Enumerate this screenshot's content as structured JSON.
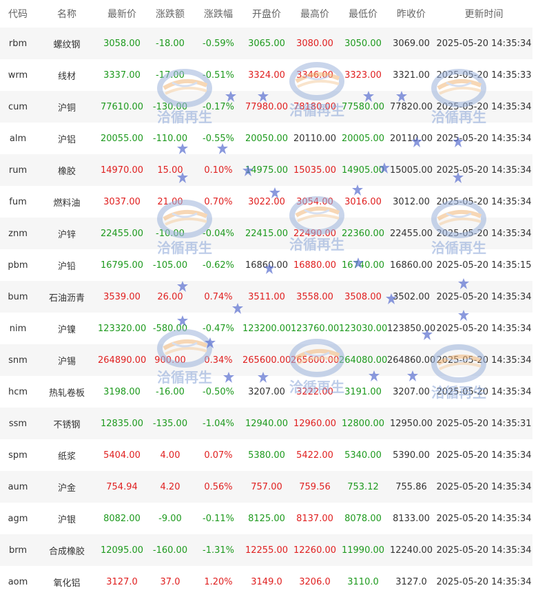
{
  "colors": {
    "up": "#e02020",
    "down": "#1e9a1e",
    "flat": "#333333",
    "row_alt": "#f6f6f6",
    "watermark": "#8aa6d8"
  },
  "table": {
    "headers": {
      "code": "代码",
      "name": "名称",
      "last": "最新价",
      "change": "涨跌额",
      "change_pct": "涨跌幅",
      "open": "开盘价",
      "high": "最高价",
      "low": "最低价",
      "prev_close": "昨收价",
      "updated": "更新时间"
    },
    "rows": [
      {
        "code": "rbm",
        "name": "螺纹钢",
        "last": "3058.00",
        "change": "-18.00",
        "change_pct": "-0.59%",
        "open": "3065.00",
        "high": "3080.00",
        "low": "3050.00",
        "prev_close": "3069.00",
        "updated": "2025-05-20 14:35:34",
        "dir": "down",
        "open_dir": "down",
        "high_dir": "up",
        "low_dir": "down"
      },
      {
        "code": "wrm",
        "name": "线材",
        "last": "3337.00",
        "change": "-17.00",
        "change_pct": "-0.51%",
        "open": "3324.00",
        "high": "3346.00",
        "low": "3323.00",
        "prev_close": "3321.00",
        "updated": "2025-05-20 14:35:33",
        "dir": "down",
        "open_dir": "up",
        "high_dir": "up",
        "low_dir": "up"
      },
      {
        "code": "cum",
        "name": "沪铜",
        "last": "77610.00",
        "change": "-130.00",
        "change_pct": "-0.17%",
        "open": "77980.00",
        "high": "78180.00",
        "low": "77580.00",
        "prev_close": "77820.00",
        "updated": "2025-05-20 14:35:34",
        "dir": "down",
        "open_dir": "up",
        "high_dir": "up",
        "low_dir": "down"
      },
      {
        "code": "alm",
        "name": "沪铝",
        "last": "20055.00",
        "change": "-110.00",
        "change_pct": "-0.55%",
        "open": "20050.00",
        "high": "20110.00",
        "low": "20005.00",
        "prev_close": "20110.00",
        "updated": "2025-05-20 14:35:34",
        "dir": "down",
        "open_dir": "down",
        "high_dir": "flat",
        "low_dir": "down"
      },
      {
        "code": "rum",
        "name": "橡胶",
        "last": "14970.00",
        "change": "15.00",
        "change_pct": "0.10%",
        "open": "14975.00",
        "high": "15035.00",
        "low": "14905.00",
        "prev_close": "15005.00",
        "updated": "2025-05-20 14:35:34",
        "dir": "up",
        "open_dir": "down",
        "high_dir": "up",
        "low_dir": "down"
      },
      {
        "code": "fum",
        "name": "燃料油",
        "last": "3037.00",
        "change": "21.00",
        "change_pct": "0.70%",
        "open": "3022.00",
        "high": "3054.00",
        "low": "3016.00",
        "prev_close": "3012.00",
        "updated": "2025-05-20 14:35:34",
        "dir": "up",
        "open_dir": "up",
        "high_dir": "up",
        "low_dir": "up"
      },
      {
        "code": "znm",
        "name": "沪锌",
        "last": "22455.00",
        "change": "-10.00",
        "change_pct": "-0.04%",
        "open": "22415.00",
        "high": "22490.00",
        "low": "22360.00",
        "prev_close": "22455.00",
        "updated": "2025-05-20 14:35:34",
        "dir": "down",
        "open_dir": "down",
        "high_dir": "up",
        "low_dir": "down"
      },
      {
        "code": "pbm",
        "name": "沪铅",
        "last": "16795.00",
        "change": "-105.00",
        "change_pct": "-0.62%",
        "open": "16860.00",
        "high": "16880.00",
        "low": "16740.00",
        "prev_close": "16860.00",
        "updated": "2025-05-20 14:35:15",
        "dir": "down",
        "open_dir": "flat",
        "high_dir": "up",
        "low_dir": "down"
      },
      {
        "code": "bum",
        "name": "石油沥青",
        "last": "3539.00",
        "change": "26.00",
        "change_pct": "0.74%",
        "open": "3511.00",
        "high": "3558.00",
        "low": "3508.00",
        "prev_close": "3502.00",
        "updated": "2025-05-20 14:35:34",
        "dir": "up",
        "open_dir": "up",
        "high_dir": "up",
        "low_dir": "up"
      },
      {
        "code": "nim",
        "name": "沪镍",
        "last": "123320.00",
        "change": "-580.00",
        "change_pct": "-0.47%",
        "open": "123200.00",
        "high": "123760.00",
        "low": "123030.00",
        "prev_close": "123850.00",
        "updated": "2025-05-20 14:35:34",
        "dir": "down",
        "open_dir": "down",
        "high_dir": "down",
        "low_dir": "down"
      },
      {
        "code": "snm",
        "name": "沪锡",
        "last": "264890.00",
        "change": "900.00",
        "change_pct": "0.34%",
        "open": "265600.00",
        "high": "265600.00",
        "low": "264080.00",
        "prev_close": "264860.00",
        "updated": "2025-05-20 14:35:34",
        "dir": "up",
        "open_dir": "up",
        "high_dir": "up",
        "low_dir": "down"
      },
      {
        "code": "hcm",
        "name": "热轧卷板",
        "last": "3198.00",
        "change": "-16.00",
        "change_pct": "-0.50%",
        "open": "3207.00",
        "high": "3222.00",
        "low": "3191.00",
        "prev_close": "3207.00",
        "updated": "2025-05-20 14:35:34",
        "dir": "down",
        "open_dir": "flat",
        "high_dir": "up",
        "low_dir": "down"
      },
      {
        "code": "ssm",
        "name": "不锈钢",
        "last": "12835.00",
        "change": "-135.00",
        "change_pct": "-1.04%",
        "open": "12940.00",
        "high": "12960.00",
        "low": "12800.00",
        "prev_close": "12950.00",
        "updated": "2025-05-20 14:35:31",
        "dir": "down",
        "open_dir": "down",
        "high_dir": "up",
        "low_dir": "down"
      },
      {
        "code": "spm",
        "name": "纸浆",
        "last": "5404.00",
        "change": "4.00",
        "change_pct": "0.07%",
        "open": "5380.00",
        "high": "5422.00",
        "low": "5340.00",
        "prev_close": "5390.00",
        "updated": "2025-05-20 14:35:34",
        "dir": "up",
        "open_dir": "down",
        "high_dir": "up",
        "low_dir": "down"
      },
      {
        "code": "aum",
        "name": "沪金",
        "last": "754.94",
        "change": "4.20",
        "change_pct": "0.56%",
        "open": "757.00",
        "high": "759.56",
        "low": "753.12",
        "prev_close": "755.86",
        "updated": "2025-05-20 14:35:34",
        "dir": "up",
        "open_dir": "up",
        "high_dir": "up",
        "low_dir": "down"
      },
      {
        "code": "agm",
        "name": "沪银",
        "last": "8082.00",
        "change": "-9.00",
        "change_pct": "-0.11%",
        "open": "8125.00",
        "high": "8137.00",
        "low": "8078.00",
        "prev_close": "8133.00",
        "updated": "2025-05-20 14:35:34",
        "dir": "down",
        "open_dir": "down",
        "high_dir": "up",
        "low_dir": "down"
      },
      {
        "code": "brm",
        "name": "合成橡胶",
        "last": "12095.00",
        "change": "-160.00",
        "change_pct": "-1.31%",
        "open": "12255.00",
        "high": "12260.00",
        "low": "11990.00",
        "prev_close": "12240.00",
        "updated": "2025-05-20 14:35:34",
        "dir": "down",
        "open_dir": "up",
        "high_dir": "up",
        "low_dir": "down"
      },
      {
        "code": "aom",
        "name": "氧化铝",
        "last": "3127.0",
        "change": "37.0",
        "change_pct": "1.20%",
        "open": "3149.0",
        "high": "3206.0",
        "low": "3110.0",
        "prev_close": "3127.0",
        "updated": "2025-05-20 14:35:34",
        "dir": "up",
        "open_dir": "up",
        "high_dir": "up",
        "low_dir": "down"
      }
    ]
  },
  "watermark": {
    "text": "洽循再生"
  }
}
